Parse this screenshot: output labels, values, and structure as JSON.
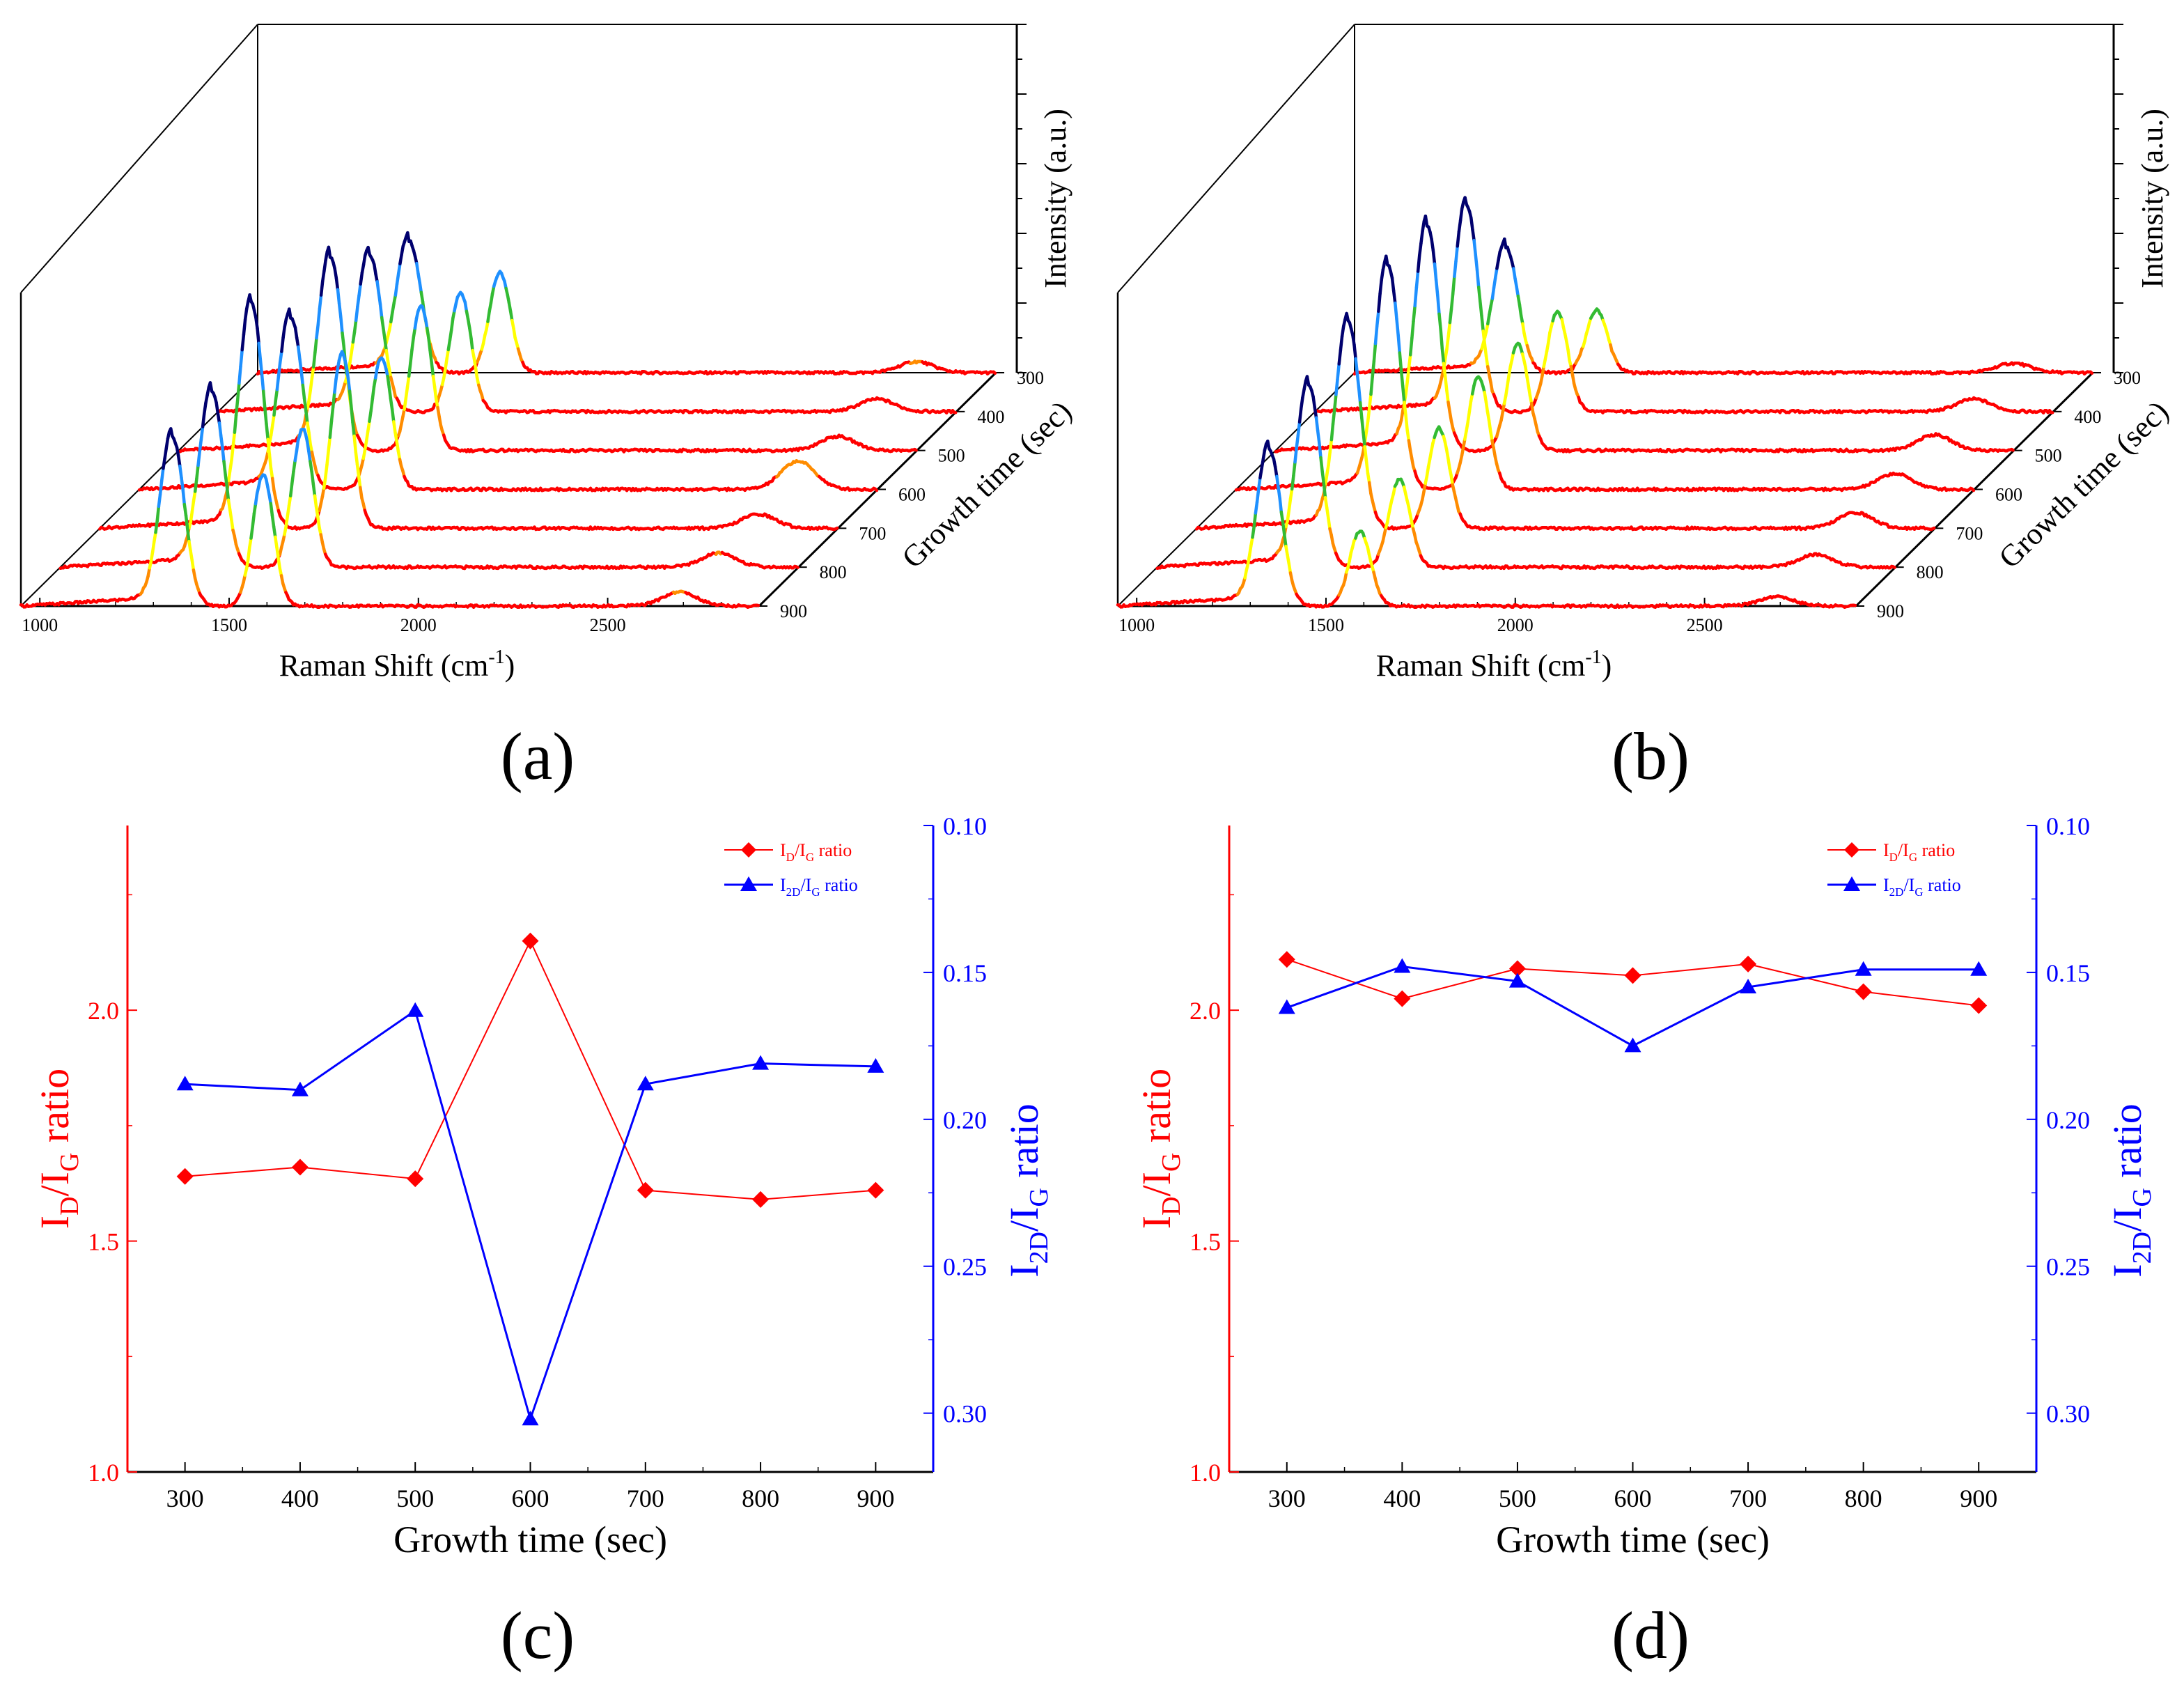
{
  "figure": {
    "panel_labels": [
      "(a)",
      "(b)",
      "(c)",
      "(d)"
    ]
  },
  "colors": {
    "red": "#ff0000",
    "blue": "#0000ff",
    "orange": "#ff8c00",
    "yellow": "#ffff00",
    "green": "#33bb33",
    "light_blue": "#1e90ff",
    "navy": "#00006e",
    "axis": "#000000"
  },
  "chart_data": [
    {
      "id": "a",
      "type": "line",
      "variant": "3d-waterfall",
      "title": "",
      "xlabel": "Raman Shift (cm",
      "xlabel_sup": "-1",
      "xlabel_end": ")",
      "zlabel": "Intensity (a.u.)",
      "ylabel": "Growth time (sec)",
      "xlim": [
        950,
        2900
      ],
      "xticks": [
        1000,
        1500,
        2000,
        2500
      ],
      "growth_times": [
        300,
        400,
        500,
        600,
        700,
        800,
        900
      ],
      "series": [
        {
          "name": "300",
          "D": 0.42,
          "G": 0.32,
          "D2": 0.035
        },
        {
          "name": "400",
          "D": 0.5,
          "G": 0.38,
          "D2": 0.04
        },
        {
          "name": "500",
          "D": 0.62,
          "G": 0.46,
          "D2": 0.045
        },
        {
          "name": "600",
          "D": 0.55,
          "G": 0.42,
          "D2": 0.09
        },
        {
          "name": "700",
          "D": 0.72,
          "G": 0.56,
          "D2": 0.045
        },
        {
          "name": "800",
          "D": 0.56,
          "G": 0.44,
          "D2": 0.045
        },
        {
          "name": "900",
          "D": 0.54,
          "G": 0.42,
          "D2": 0.045
        }
      ]
    },
    {
      "id": "b",
      "type": "line",
      "variant": "3d-waterfall",
      "title": "",
      "xlabel": "Raman Shift (cm",
      "xlabel_sup": "-1",
      "xlabel_end": ")",
      "zlabel": "Intensity (a.u.)",
      "ylabel": "Growth time (sec)",
      "xlim": [
        950,
        2900
      ],
      "xticks": [
        1000,
        1500,
        2000,
        2500
      ],
      "growth_times": [
        300,
        400,
        500,
        600,
        700,
        800,
        900
      ],
      "series": [
        {
          "name": "300",
          "D": 0.4,
          "G": 0.2,
          "D2": 0.03
        },
        {
          "name": "400",
          "D": 0.66,
          "G": 0.32,
          "D2": 0.04
        },
        {
          "name": "500",
          "D": 0.72,
          "G": 0.34,
          "D2": 0.05
        },
        {
          "name": "600",
          "D": 0.72,
          "G": 0.36,
          "D2": 0.05
        },
        {
          "name": "700",
          "D": 0.66,
          "G": 0.32,
          "D2": 0.05
        },
        {
          "name": "800",
          "D": 0.58,
          "G": 0.28,
          "D2": 0.04
        },
        {
          "name": "900",
          "D": 0.5,
          "G": 0.24,
          "D2": 0.03
        }
      ]
    },
    {
      "id": "c",
      "type": "line",
      "title": "",
      "xlabel": "Growth time (sec)",
      "ylabel_left": {
        "base": "I",
        "sub1": "D",
        "mid": "/I",
        "sub2": "G",
        "end": " ratio"
      },
      "ylabel_right": {
        "base": "I",
        "sub1": "2D",
        "mid": "/I",
        "sub2": "G",
        "end": " ratio"
      },
      "xlim": [
        250,
        950
      ],
      "ylim_left": [
        1.0,
        2.4
      ],
      "ylim_right": [
        0.1,
        0.32
      ],
      "right_axis_inverted": true,
      "x": [
        300,
        400,
        500,
        600,
        700,
        800,
        900
      ],
      "xticks": [
        300,
        400,
        500,
        600,
        700,
        800,
        900
      ],
      "yticks_left": [
        "1.0",
        "1.5",
        "2.0"
      ],
      "yticks_left_values": [
        1.0,
        1.5,
        2.0
      ],
      "yticks_right": [
        "0.10",
        "0.15",
        "0.20",
        "0.25",
        "0.30"
      ],
      "yticks_right_values": [
        0.1,
        0.15,
        0.2,
        0.25,
        0.3
      ],
      "legend": [
        {
          "base": "I",
          "sub1": "D",
          "mid": "/I",
          "sub2": "G",
          "end": " ratio"
        },
        {
          "base": "I",
          "sub1": "2D",
          "mid": "/I",
          "sub2": "G",
          "end": " ratio"
        }
      ],
      "legend_placement": "top-right",
      "series": [
        {
          "name": "ID/IG ratio",
          "axis": "left",
          "marker": "diamond",
          "values": [
            1.64,
            1.66,
            1.635,
            2.15,
            1.61,
            1.59,
            1.61
          ]
        },
        {
          "name": "I2D/IG ratio",
          "axis": "right",
          "marker": "triangle",
          "values": [
            0.188,
            0.19,
            0.163,
            0.302,
            0.188,
            0.181,
            0.182
          ]
        }
      ]
    },
    {
      "id": "d",
      "type": "line",
      "title": "",
      "xlabel": "Growth time (sec)",
      "ylabel_left": {
        "base": "I",
        "sub1": "D",
        "mid": "/I",
        "sub2": "G",
        "end": " ratio"
      },
      "ylabel_right": {
        "base": "I",
        "sub1": "2D",
        "mid": "/I",
        "sub2": "G",
        "end": " ratio"
      },
      "xlim": [
        250,
        950
      ],
      "ylim_left": [
        1.0,
        2.4
      ],
      "ylim_right": [
        0.1,
        0.32
      ],
      "right_axis_inverted": true,
      "x": [
        300,
        400,
        500,
        600,
        700,
        800,
        900
      ],
      "xticks": [
        300,
        400,
        500,
        600,
        700,
        800,
        900
      ],
      "yticks_left": [
        "1.0",
        "1.5",
        "2.0"
      ],
      "yticks_left_values": [
        1.0,
        1.5,
        2.0
      ],
      "yticks_right": [
        "0.10",
        "0.15",
        "0.20",
        "0.25",
        "0.30"
      ],
      "yticks_right_values": [
        0.1,
        0.15,
        0.2,
        0.25,
        0.3
      ],
      "legend": [
        {
          "base": "I",
          "sub1": "D",
          "mid": "/I",
          "sub2": "G",
          "end": " ratio"
        },
        {
          "base": "I",
          "sub1": "2D",
          "mid": "/I",
          "sub2": "G",
          "end": " ratio"
        }
      ],
      "legend_placement": "top-right",
      "series": [
        {
          "name": "ID/IG ratio",
          "axis": "left",
          "marker": "diamond",
          "values": [
            2.11,
            2.025,
            2.09,
            2.075,
            2.1,
            2.04,
            2.01
          ]
        },
        {
          "name": "I2D/IG ratio",
          "axis": "right",
          "marker": "triangle",
          "values": [
            0.162,
            0.148,
            0.153,
            0.175,
            0.155,
            0.149,
            0.149
          ]
        }
      ]
    }
  ]
}
